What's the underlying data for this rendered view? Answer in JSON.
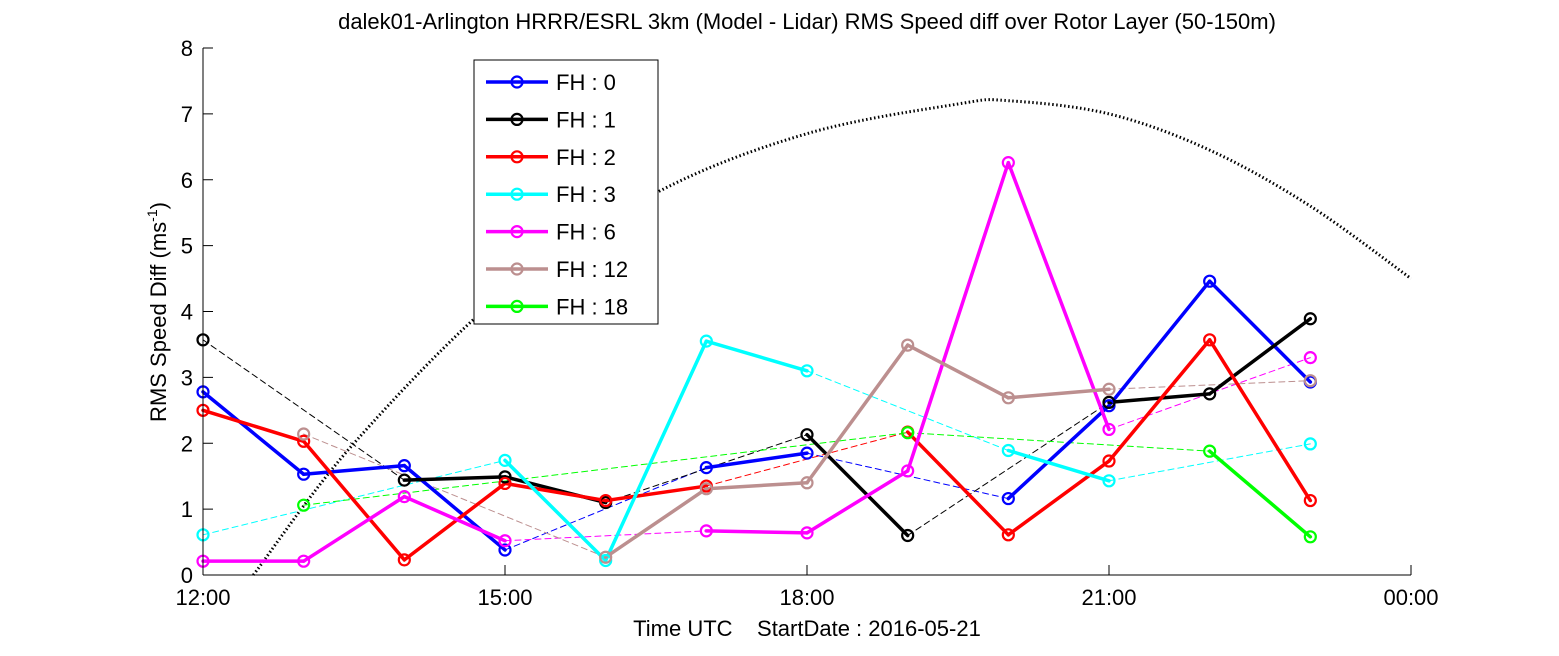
{
  "chart_data": {
    "type": "line",
    "title": "dalek01-Arlington HRRR/ESRL 3km (Model - Lidar) RMS Speed diff over Rotor Layer (50-150m)",
    "xlabel": "Time UTC    StartDate : 2016-05-21",
    "ylabel": {
      "base": "RMS Speed Diff (ms",
      "sup": "-1",
      "end": ")"
    },
    "xticks": [
      {
        "value": "12:00",
        "label": "12:00"
      },
      {
        "value": "15:00",
        "label": "15:00"
      },
      {
        "value": "18:00",
        "label": "18:00"
      },
      {
        "value": "21:00",
        "label": "21:00"
      },
      {
        "value": "24:00",
        "label": "00:00"
      }
    ],
    "xlim": [
      "12:00",
      "24:00"
    ],
    "ylim": [
      0,
      8
    ],
    "yticks": [
      0,
      1,
      2,
      3,
      4,
      5,
      6,
      7,
      8
    ],
    "grid": false,
    "legend_position": "top-left",
    "series": [
      {
        "name": "FH : 0",
        "color": "#0000ff",
        "points": [
          [
            "12:00",
            2.78
          ],
          [
            "13:00",
            1.53
          ],
          [
            "14:00",
            1.66
          ],
          [
            "15:00",
            0.38
          ],
          [
            "17:00",
            1.63
          ],
          [
            "18:00",
            1.85
          ],
          [
            "20:00",
            1.16
          ],
          [
            "21:00",
            2.57
          ],
          [
            "22:00",
            4.46
          ],
          [
            "23:00",
            2.93
          ]
        ]
      },
      {
        "name": "FH : 1",
        "color": "#000000",
        "points": [
          [
            "12:00",
            3.57
          ],
          [
            "14:00",
            1.44
          ],
          [
            "15:00",
            1.49
          ],
          [
            "16:00",
            1.1
          ],
          [
            "18:00",
            2.13
          ],
          [
            "19:00",
            0.6
          ],
          [
            "21:00",
            2.62
          ],
          [
            "22:00",
            2.75
          ],
          [
            "23:00",
            3.89
          ]
        ]
      },
      {
        "name": "FH : 2",
        "color": "#ff0000",
        "points": [
          [
            "12:00",
            2.5
          ],
          [
            "13:00",
            2.03
          ],
          [
            "14:00",
            0.23
          ],
          [
            "15:00",
            1.39
          ],
          [
            "16:00",
            1.13
          ],
          [
            "17:00",
            1.35
          ],
          [
            "19:00",
            2.17
          ],
          [
            "20:00",
            0.61
          ],
          [
            "21:00",
            1.73
          ],
          [
            "22:00",
            3.57
          ],
          [
            "23:00",
            1.13
          ]
        ]
      },
      {
        "name": "FH : 3",
        "color": "#00ffff",
        "points": [
          [
            "12:00",
            0.61
          ],
          [
            "15:00",
            1.74
          ],
          [
            "16:00",
            0.22
          ],
          [
            "17:00",
            3.55
          ],
          [
            "18:00",
            3.1
          ],
          [
            "20:00",
            1.89
          ],
          [
            "21:00",
            1.43
          ],
          [
            "23:00",
            1.99
          ]
        ]
      },
      {
        "name": "FH : 6",
        "color": "#ff00ff",
        "points": [
          [
            "12:00",
            0.21
          ],
          [
            "13:00",
            0.21
          ],
          [
            "14:00",
            1.19
          ],
          [
            "15:00",
            0.52
          ],
          [
            "17:00",
            0.67
          ],
          [
            "18:00",
            0.64
          ],
          [
            "19:00",
            1.58
          ],
          [
            "20:00",
            6.26
          ],
          [
            "21:00",
            2.21
          ],
          [
            "23:00",
            3.3
          ]
        ]
      },
      {
        "name": "FH : 12",
        "color": "#bc8f8f",
        "points": [
          [
            "13:00",
            2.14
          ],
          [
            "16:00",
            0.27
          ],
          [
            "17:00",
            1.31
          ],
          [
            "18:00",
            1.4
          ],
          [
            "19:00",
            3.49
          ],
          [
            "20:00",
            2.69
          ],
          [
            "21:00",
            2.82
          ],
          [
            "23:00",
            2.95
          ]
        ]
      },
      {
        "name": "FH : 18",
        "color": "#00ff00",
        "points": [
          [
            "13:00",
            1.06
          ],
          [
            "19:00",
            2.16
          ],
          [
            "22:00",
            1.88
          ],
          [
            "23:00",
            0.58
          ]
        ]
      }
    ],
    "reference_curve": {
      "style": "dotted",
      "color": "#000000",
      "points": [
        [
          "12:30",
          0.0
        ],
        [
          "13:30",
          2.0
        ],
        [
          "15:00",
          4.3
        ],
        [
          "16:30",
          5.8
        ],
        [
          "18:00",
          6.7
        ],
        [
          "19:30",
          7.15
        ],
        [
          "20:00",
          7.2
        ],
        [
          "21:00",
          7.0
        ],
        [
          "22:00",
          6.45
        ],
        [
          "23:00",
          5.6
        ],
        [
          "24:00",
          4.5
        ]
      ]
    }
  }
}
